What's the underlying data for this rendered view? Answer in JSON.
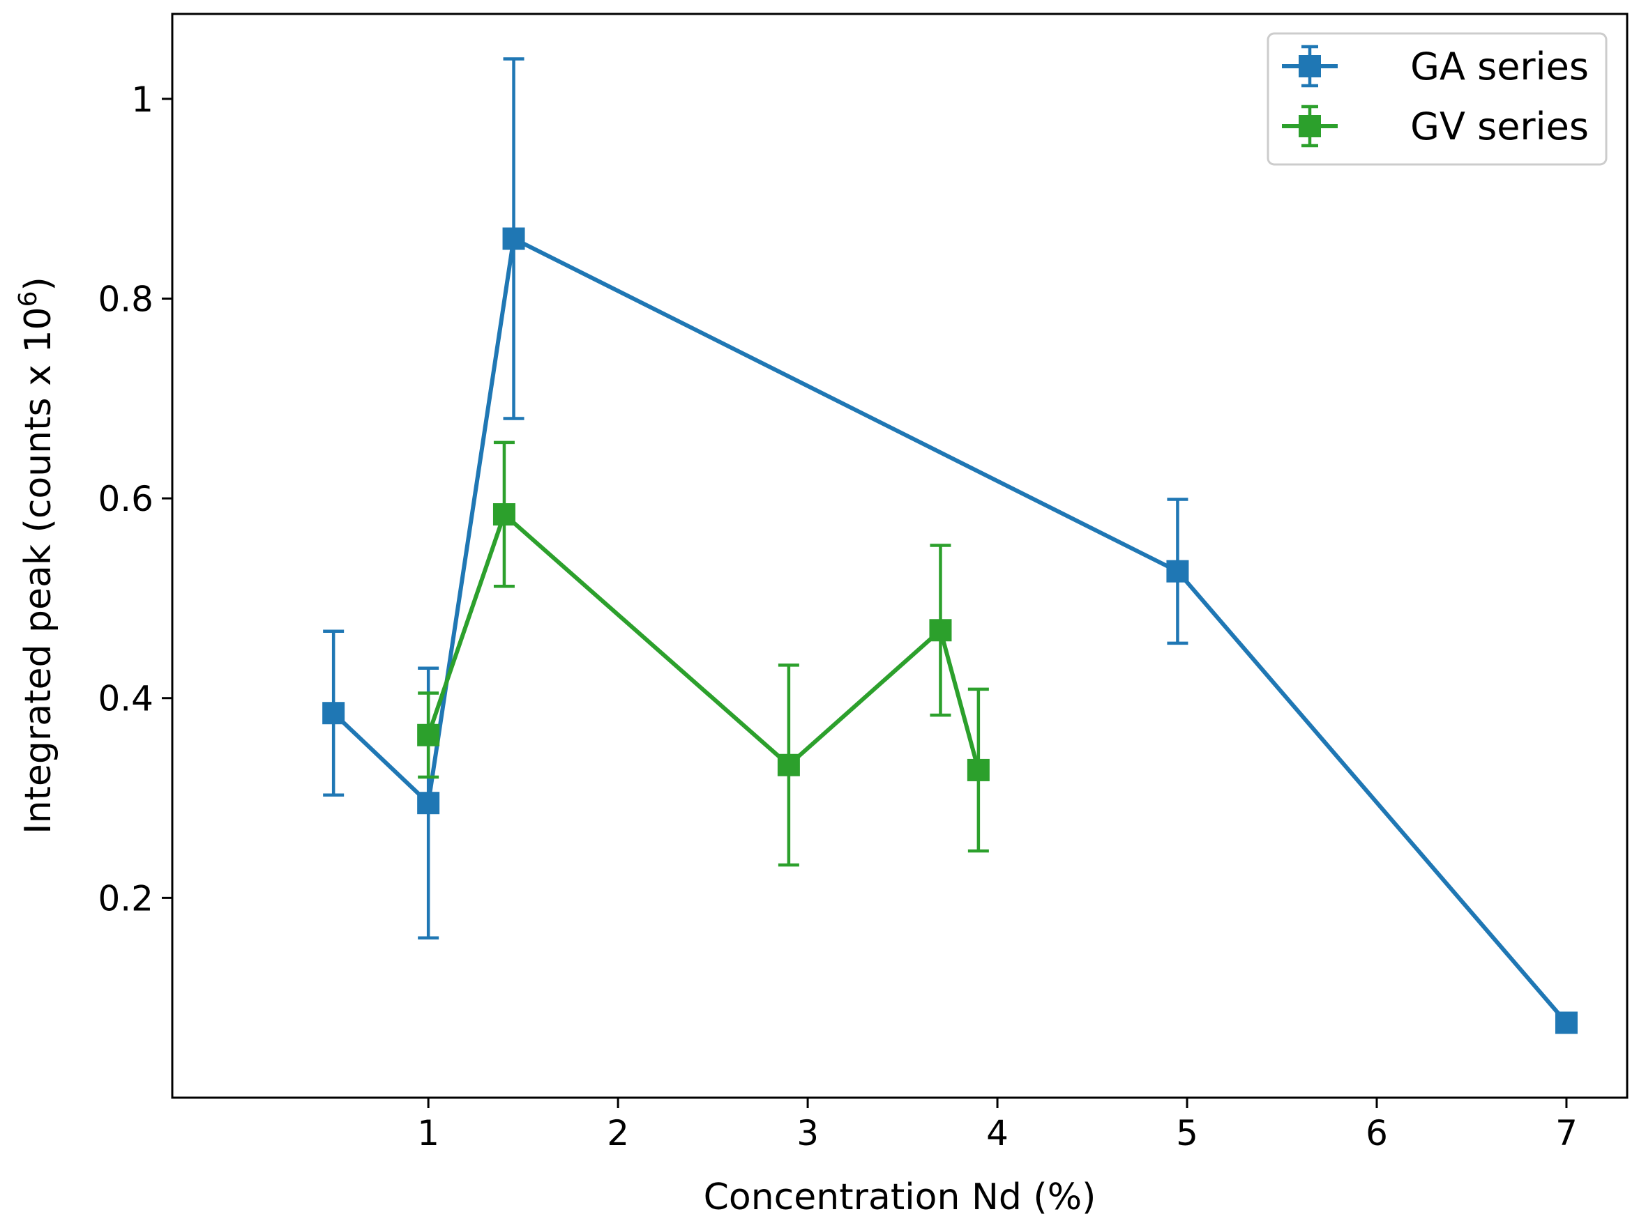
{
  "chart_data": {
    "type": "line",
    "title": "",
    "xlabel": "Concentration Nd (%)",
    "ylabel": {
      "main": "Integrated peak (counts x 10",
      "sup": "6",
      "close": ")"
    },
    "xlim": [
      -0.35,
      7.32
    ],
    "ylim": [
      -0.0,
      1.085
    ],
    "xticks": [
      1,
      2,
      3,
      4,
      5,
      6,
      7
    ],
    "xtick_labels": [
      "1",
      "2",
      "3",
      "4",
      "5",
      "6",
      "7"
    ],
    "yticks": [
      0.2,
      0.4,
      0.6,
      0.8,
      1.0
    ],
    "ytick_labels": [
      "0.2",
      "0.4",
      "0.6",
      "0.8",
      "1"
    ],
    "grid": false,
    "legend_position": "top-right",
    "series": [
      {
        "name": "GA series",
        "color": "#1f77b4",
        "marker": "square",
        "points": [
          {
            "x": 0.5,
            "y": 0.385,
            "err": 0.082
          },
          {
            "x": 1.0,
            "y": 0.295,
            "err": 0.135
          },
          {
            "x": 1.45,
            "y": 0.86,
            "err": 0.18
          },
          {
            "x": 4.95,
            "y": 0.527,
            "err": 0.072
          },
          {
            "x": 7.0,
            "y": 0.075,
            "err": 0.0
          }
        ]
      },
      {
        "name": "GV series",
        "color": "#2ca02c",
        "marker": "square",
        "points": [
          {
            "x": 1.0,
            "y": 0.363,
            "err": 0.042
          },
          {
            "x": 1.4,
            "y": 0.584,
            "err": 0.072
          },
          {
            "x": 2.9,
            "y": 0.333,
            "err": 0.1
          },
          {
            "x": 3.7,
            "y": 0.468,
            "err": 0.085
          },
          {
            "x": 3.9,
            "y": 0.328,
            "err": 0.081
          }
        ]
      }
    ]
  }
}
